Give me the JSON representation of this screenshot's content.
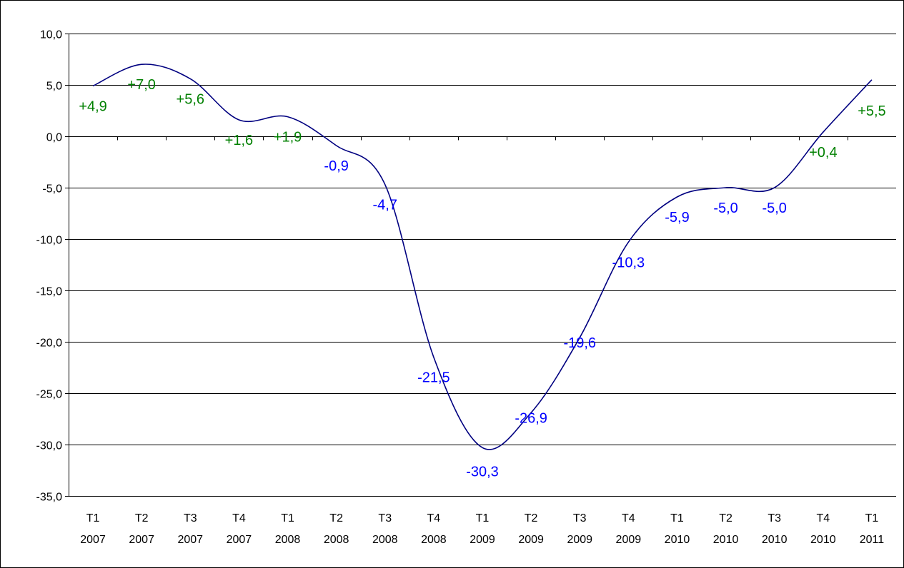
{
  "chart_data": {
    "type": "line",
    "title": "",
    "xlabel": "",
    "ylabel": "",
    "ylim": [
      -35,
      10
    ],
    "ytick_step": 5,
    "grid": "horizontal",
    "legend": "none",
    "x": [
      [
        "T1",
        "2007"
      ],
      [
        "T2",
        "2007"
      ],
      [
        "T3",
        "2007"
      ],
      [
        "T4",
        "2007"
      ],
      [
        "T1",
        "2008"
      ],
      [
        "T2",
        "2008"
      ],
      [
        "T3",
        "2008"
      ],
      [
        "T4",
        "2008"
      ],
      [
        "T1",
        "2009"
      ],
      [
        "T2",
        "2009"
      ],
      [
        "T3",
        "2009"
      ],
      [
        "T4",
        "2009"
      ],
      [
        "T1",
        "2010"
      ],
      [
        "T2",
        "2010"
      ],
      [
        "T3",
        "2010"
      ],
      [
        "T4",
        "2010"
      ],
      [
        "T1",
        "2011"
      ]
    ],
    "series": [
      {
        "values": [
          4.9,
          7.0,
          5.6,
          1.6,
          1.9,
          -0.9,
          -4.7,
          -21.5,
          -30.3,
          -26.9,
          -19.6,
          -10.3,
          -5.9,
          -5.0,
          -5.0,
          0.4,
          5.5
        ],
        "color": "#000080"
      }
    ],
    "data_labels": [
      "+4,9",
      "+7,0",
      "+5,6",
      "+1,6",
      "+1,9",
      "-0,9",
      "-4,7",
      "-21,5",
      "-30,3",
      "-26,9",
      "-19,6",
      "-10,3",
      "-5,9",
      "-5,0",
      "-5,0",
      "+0,4",
      "+5,5"
    ],
    "ytick_labels": [
      "10,0",
      "5,0",
      "0,0",
      "-5,0",
      "-10,0",
      "-15,0",
      "-20,0",
      "-25,0",
      "-30,0",
      "-35,0"
    ],
    "colors": {
      "positive_label": "#008000",
      "negative_label": "#0000ff",
      "line": "#000080",
      "grid": "#000000"
    }
  }
}
